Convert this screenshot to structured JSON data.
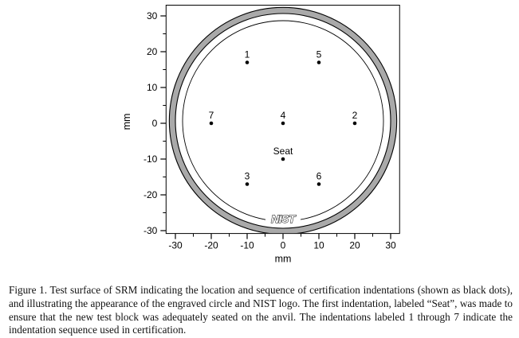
{
  "figure": {
    "caption": "Figure 1.  Test surface of SRM indicating the location and sequence of certification indentations (shown as black dots), and illustrating the appearance of the engraved circle and NIST logo.  The first indentation, labeled “Seat”, was made to ensure that the new test block was adequately seated on the anvil.  The indentations labeled 1 through 7 indicate the indentation sequence used in certification."
  },
  "chart_data": {
    "type": "scatter",
    "title": "",
    "xlabel": "mm",
    "ylabel": "mm",
    "xlim": [
      -32.6,
      32.5
    ],
    "ylim": [
      -30.8,
      33.0
    ],
    "x_major_ticks": [
      -30,
      -20,
      -10,
      0,
      10,
      20,
      30
    ],
    "y_major_ticks": [
      -30,
      -20,
      -10,
      0,
      10,
      20,
      30
    ],
    "minor_tick_step_mm": 5,
    "grid": "off",
    "points": [
      {
        "label": "1",
        "x": -10,
        "y": 17
      },
      {
        "label": "5",
        "x": 10,
        "y": 17
      },
      {
        "label": "7",
        "x": -20,
        "y": 0
      },
      {
        "label": "4",
        "x": 0,
        "y": 0
      },
      {
        "label": "2",
        "x": 20,
        "y": 0
      },
      {
        "label": "Seat",
        "x": 0,
        "y": -10
      },
      {
        "label": "3",
        "x": -10,
        "y": -17
      },
      {
        "label": "6",
        "x": 10,
        "y": -17
      }
    ],
    "engraved_circles": {
      "annulus_outer_radius_mm": 31.7,
      "annulus_inner_radius_mm": 30.0,
      "thin_circle_radius_mm": 28.0,
      "annulus_color": "#a9a9a9",
      "line_color": "#000000"
    },
    "logo_text": "NIST",
    "logo_position_mm": {
      "x": 0,
      "y": -26.5
    }
  },
  "colors": {
    "axis": "#000000",
    "dot": "#000000",
    "background": "#ffffff"
  }
}
